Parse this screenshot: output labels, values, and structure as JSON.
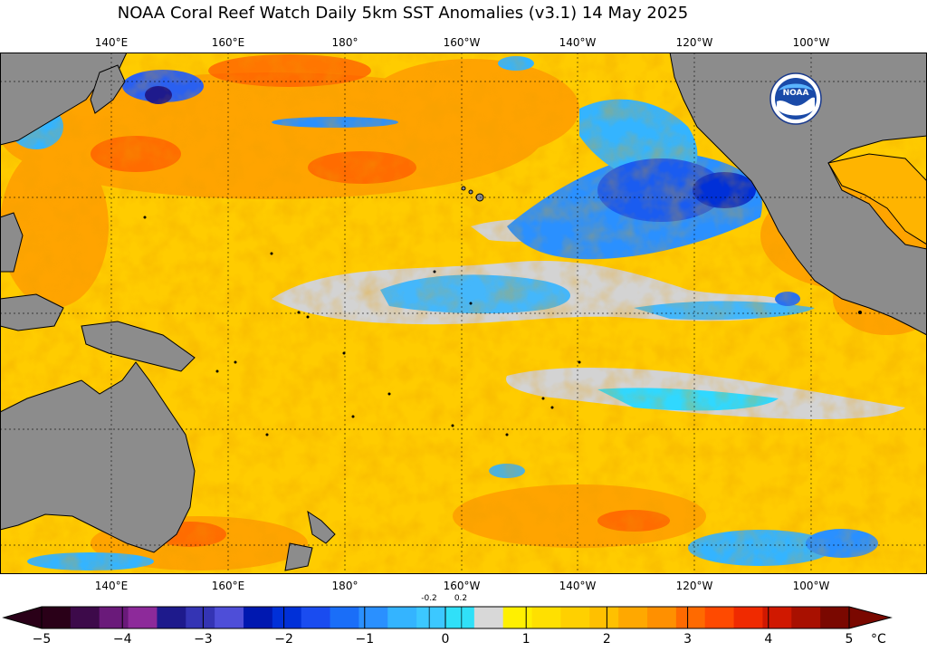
{
  "title": "NOAA Coral Reef Watch Daily 5km SST Anomalies  (v3.1)   14 May 2025",
  "map": {
    "longitude_labels": [
      "140°E",
      "160°E",
      "180°",
      "160°W",
      "140°W",
      "120°W",
      "100°W"
    ],
    "colors": {
      "land": "#8c8c8c",
      "near_zero": "#d3d3d3",
      "grid": "#000000"
    }
  },
  "logo": {
    "text": "NOAA"
  },
  "colorbar": {
    "ticks": [
      "−5",
      "−4",
      "−3",
      "−2",
      "−1",
      "0",
      "1",
      "2",
      "3",
      "4",
      "5"
    ],
    "small_labels": [
      "-0.2",
      "0.2"
    ],
    "unit": "°C",
    "range": [
      -5,
      5
    ],
    "colors": [
      "#2a0018",
      "#3d0a4a",
      "#6a1a7a",
      "#8d2a9a",
      "#1e1a8c",
      "#3434b4",
      "#4e4ed8",
      "#0018b0",
      "#0030d8",
      "#1a4cf0",
      "#1a6ef8",
      "#2a90ff",
      "#34b4ff",
      "#3cc8ff",
      "#30e0f8",
      "#d8d8d8",
      "#fff000",
      "#ffe000",
      "#ffd000",
      "#ffc000",
      "#ffa800",
      "#ff9000",
      "#ff6a00",
      "#ff4a00",
      "#f02a00",
      "#d01800",
      "#a81000",
      "#7a0800"
    ]
  }
}
